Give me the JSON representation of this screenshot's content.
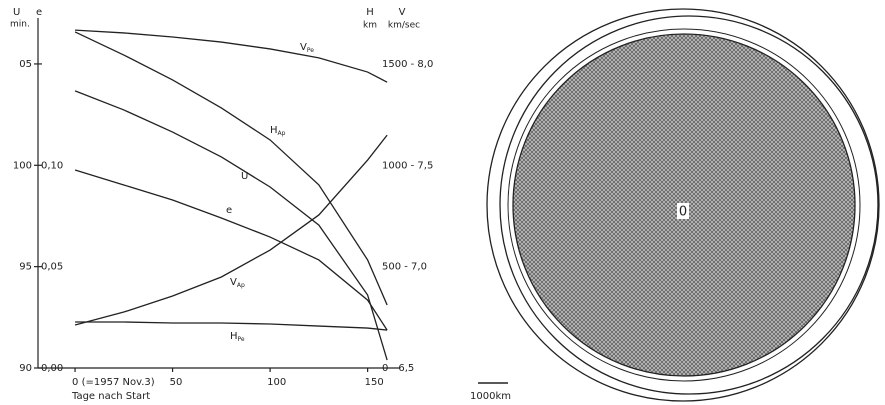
{
  "chart_data": {
    "type": "line",
    "x_label": "Tage nach Start",
    "y_label": "U",
    "y_unit": "min.",
    "y3_label": "e",
    "y2_label": "H",
    "y2_unit": "km",
    "y2b_label": "V",
    "y2b_unit": "km/sec",
    "xlim": [
      -19,
      166.6
    ],
    "xticks": [
      {
        "value": 0,
        "label": "0 (=1957 Nov.3)"
      },
      50,
      100,
      150
    ],
    "ylim": [
      90,
      107
    ],
    "yticks": [
      90,
      95,
      100,
      {
        "value": 105,
        "label": "05"
      }
    ],
    "y2lim": [
      0,
      1700
    ],
    "y2ticks": [
      {
        "value": 0,
        "label": "0 - 6,5"
      },
      {
        "value": 500,
        "label": "500 - 7,0"
      },
      {
        "value": 1000,
        "label": "1000 - 7,5"
      },
      {
        "value": 1500,
        "label": "1500 - 8,0"
      }
    ],
    "y3lim": [
      0,
      0.17
    ],
    "y3ticks": [
      {
        "value": 0,
        "label": "0,00"
      },
      {
        "value": 0.05,
        "label": "0,05"
      },
      {
        "value": 0.1,
        "label": "0,10"
      }
    ],
    "x": [
      0,
      25,
      50,
      75,
      100,
      125,
      150,
      160
    ],
    "series": [
      {
        "name": "VPe",
        "color": "#222",
        "values": [
          106.67,
          106.53,
          106.33,
          106.08,
          105.74,
          105.3,
          104.6,
          104.1
        ]
      },
      {
        "name": "HAp",
        "color": "#222",
        "values": [
          106.58,
          105.44,
          104.21,
          102.83,
          101.25,
          99.03,
          95.33,
          93.11
        ]
      },
      {
        "name": "U",
        "color": "#222",
        "values": [
          103.67,
          102.73,
          101.64,
          100.41,
          98.93,
          97.05,
          93.6,
          90.39
        ]
      },
      {
        "name": "e",
        "color": "#222",
        "values": [
          99.77,
          99.03,
          98.29,
          97.4,
          96.46,
          95.33,
          93.35,
          91.87
        ]
      },
      {
        "name": "VAp",
        "color": "#222",
        "values": [
          92.12,
          92.76,
          93.55,
          94.49,
          95.82,
          97.55,
          100.26,
          101.49
        ]
      },
      {
        "name": "HPe",
        "color": "#222",
        "values": [
          92.27,
          92.27,
          92.22,
          92.22,
          92.17,
          92.07,
          91.97,
          91.87
        ]
      }
    ]
  },
  "diagram": {
    "center_label": "0",
    "scale_label": "1000km"
  }
}
